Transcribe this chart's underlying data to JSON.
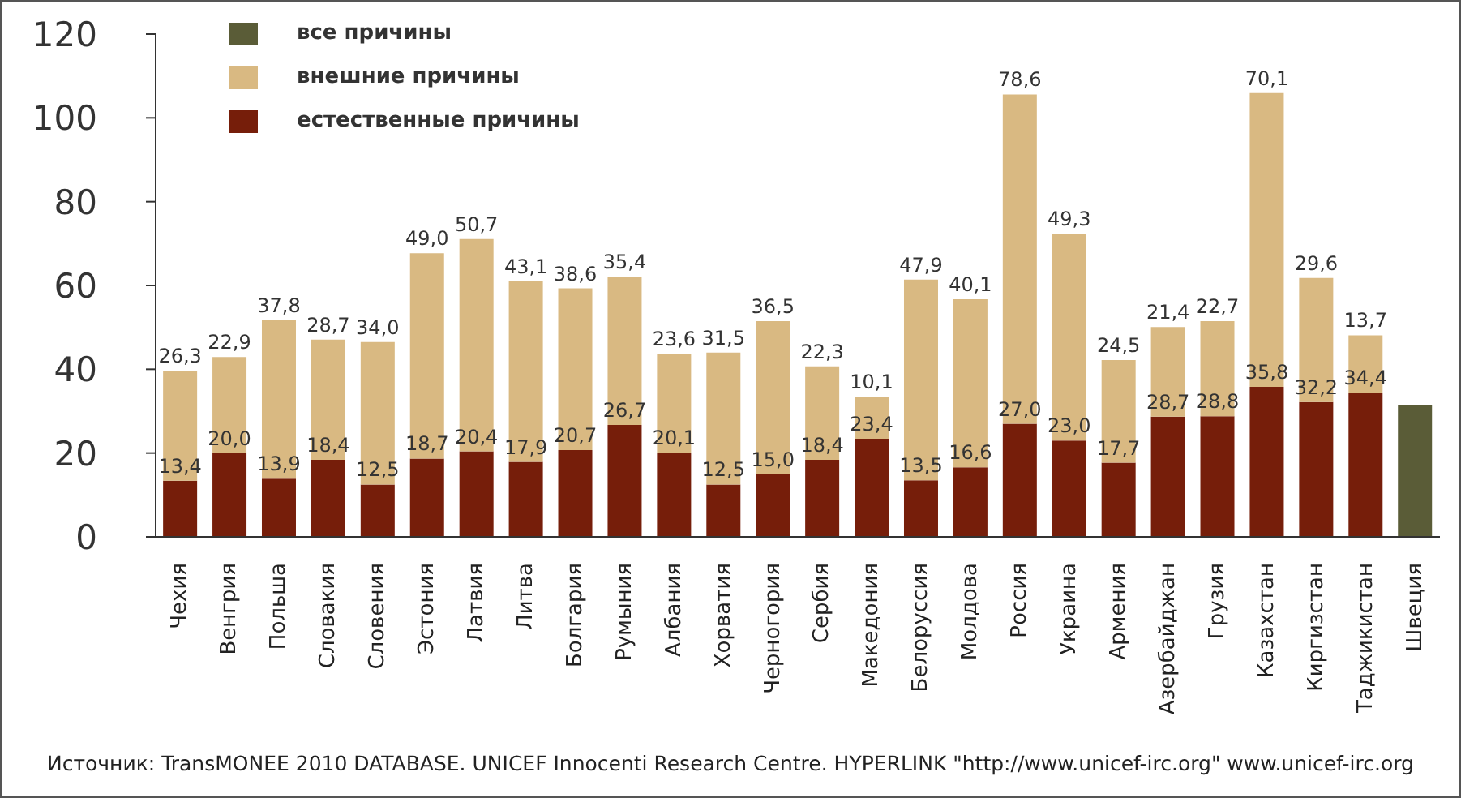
{
  "chart_data": {
    "type": "bar",
    "stacked": true,
    "categories": [
      "Чехия",
      "Венгрия",
      "Польша",
      "Словакия",
      "Словения",
      "Эстония",
      "Латвия",
      "Литва",
      "Болгария",
      "Румыния",
      "Албания",
      "Хорватия",
      "Черногория",
      "Сербия",
      "Македония",
      "Белоруссия",
      "Молдова",
      "Россия",
      "Украина",
      "Армения",
      "Азербайджан",
      "Грузия",
      "Казахстан",
      "Киргизстан",
      "Таджикистан",
      "Швеция"
    ],
    "series": [
      {
        "name": "естественные причины",
        "color": "#761e0a",
        "values": [
          13.4,
          20.0,
          13.9,
          18.4,
          12.5,
          18.7,
          20.4,
          17.9,
          20.7,
          26.7,
          20.1,
          12.5,
          15.0,
          18.4,
          23.4,
          13.5,
          16.6,
          27.0,
          23.0,
          17.7,
          28.7,
          28.8,
          35.8,
          32.2,
          34.4,
          null
        ],
        "value_labels": [
          "13,4",
          "20,0",
          "13,9",
          "18,4",
          "12,5",
          "18,7",
          "20,4",
          "17,9",
          "20,7",
          "26,7",
          "20,1",
          "12,5",
          "15,0",
          "18,4",
          "23,4",
          "13,5",
          "16,6",
          "27,0",
          "23,0",
          "17,7",
          "28,7",
          "28,8",
          "35,8",
          "32,2",
          "34,4",
          null
        ]
      },
      {
        "name": "внешние причины",
        "color": "#d9b982",
        "values": [
          26.3,
          22.9,
          37.8,
          28.7,
          34.0,
          49.0,
          50.7,
          43.1,
          38.6,
          35.4,
          23.6,
          31.5,
          36.5,
          22.3,
          10.1,
          47.9,
          40.1,
          78.6,
          49.3,
          24.5,
          21.4,
          22.7,
          70.1,
          29.6,
          13.7,
          null
        ],
        "value_labels": [
          "26,3",
          "22,9",
          "37,8",
          "28,7",
          "34,0",
          "49,0",
          "50,7",
          "43,1",
          "38,6",
          "35,4",
          "23,6",
          "31,5",
          "36,5",
          "22,3",
          "10,1",
          "47,9",
          "40,1",
          "78,6",
          "49,3",
          "24,5",
          "21,4",
          "22,7",
          "70,1",
          "29,6",
          "13,7",
          null
        ]
      },
      {
        "name": "все причины",
        "color": "#5a5c37",
        "values": [
          null,
          null,
          null,
          null,
          null,
          null,
          null,
          null,
          null,
          null,
          null,
          null,
          null,
          null,
          null,
          null,
          null,
          null,
          null,
          null,
          null,
          null,
          null,
          null,
          null,
          31.5
        ]
      }
    ],
    "ylim": [
      0,
      120
    ],
    "yticks": [
      0,
      20,
      40,
      60,
      80,
      100,
      120
    ],
    "grid": false,
    "legend": "top left",
    "annotations": [
      "Источник: TransMONEE 2010 DATABASE. UNICEF Innocenti Research Centre. HYPERLINK \"http://www.unicef-irc.org\" www.unicef-irc.org"
    ]
  }
}
